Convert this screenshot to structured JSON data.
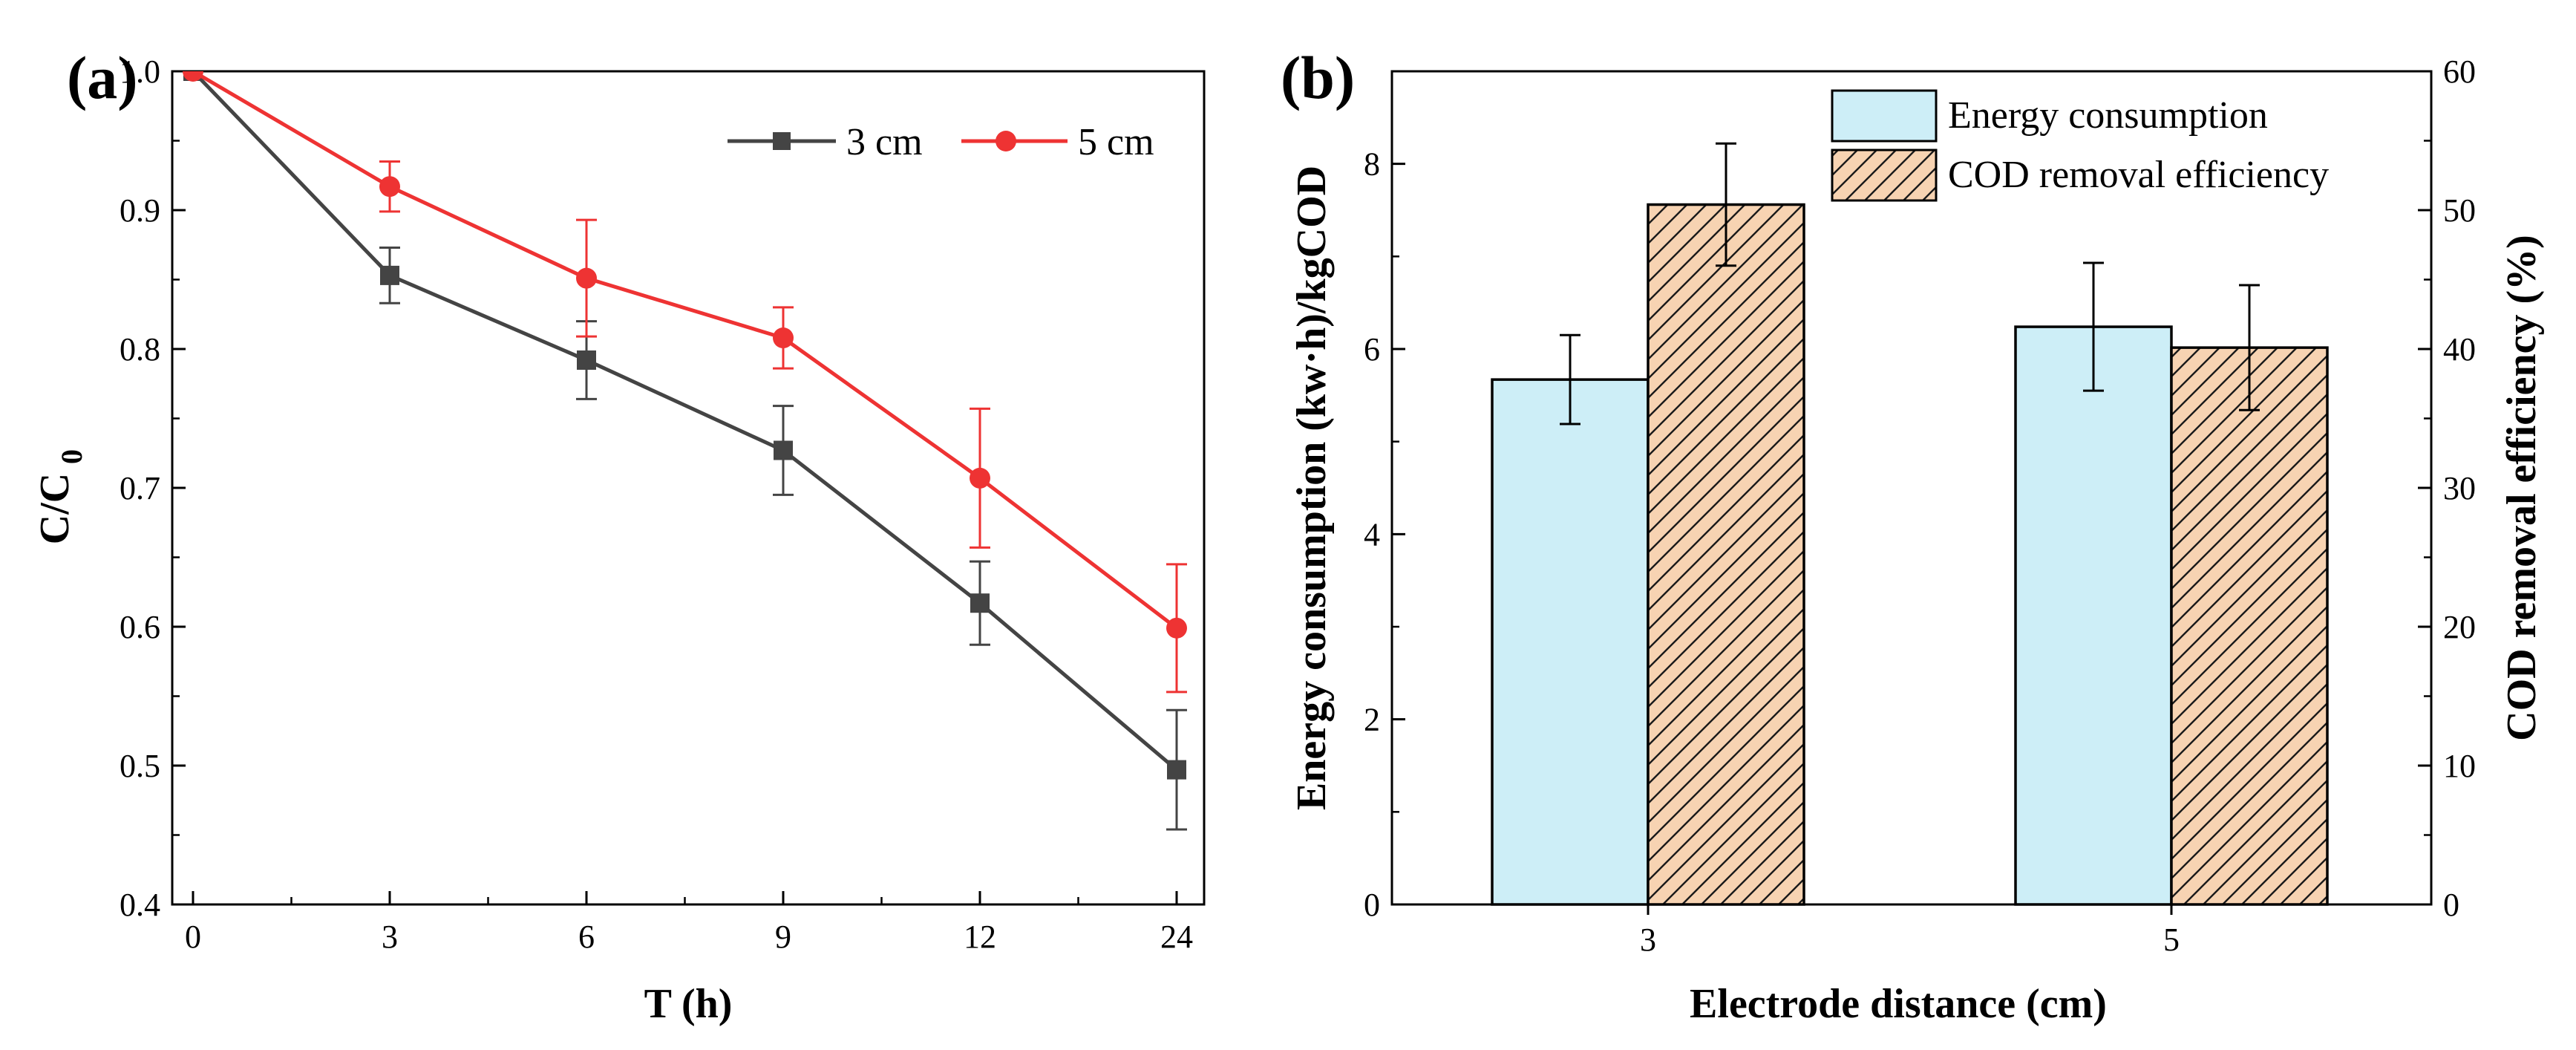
{
  "chart_data": [
    {
      "panel": "(a)",
      "type": "line",
      "categories": [
        "0",
        "3",
        "6",
        "9",
        "12",
        "24"
      ],
      "xlabel": "T (h)",
      "ylabel_main": "C/C",
      "ylabel_sub": "0",
      "ylim": [
        0.4,
        1.0
      ],
      "yticks": [
        "0.4",
        "0.5",
        "0.6",
        "0.7",
        "0.8",
        "0.9",
        "1.0"
      ],
      "series": [
        {
          "name": "3 cm",
          "color": "#444444",
          "marker": "square",
          "values": [
            1.0,
            0.853,
            0.792,
            0.727,
            0.617,
            0.497
          ],
          "errors": [
            0.0,
            0.02,
            0.028,
            0.032,
            0.03,
            0.043
          ]
        },
        {
          "name": "5 cm",
          "color": "#ee3333",
          "marker": "circle",
          "values": [
            1.0,
            0.917,
            0.851,
            0.808,
            0.707,
            0.599
          ],
          "errors": [
            0.0,
            0.018,
            0.042,
            0.022,
            0.05,
            0.046
          ]
        }
      ]
    },
    {
      "panel": "(b)",
      "type": "bar",
      "categories": [
        "3",
        "5"
      ],
      "xlabel": "Electrode distance (cm)",
      "ylabel_left": "Energy consumption (kw·h)/kgCOD",
      "ylabel_right": "COD removal efficiency (%)",
      "ylim_left": [
        0,
        9
      ],
      "ylim_right": [
        0,
        60
      ],
      "yticks_left": [
        "0",
        "2",
        "4",
        "6",
        "8"
      ],
      "yticks_right": [
        "0",
        "10",
        "20",
        "30",
        "40",
        "50",
        "60"
      ],
      "series": [
        {
          "name": "Energy consumption",
          "axis": "left",
          "color": "#cdeef7",
          "values": [
            5.67,
            6.24
          ],
          "errors": [
            0.48,
            0.69
          ]
        },
        {
          "name": "COD removal efficiency",
          "axis": "right",
          "color": "#f7d3b2",
          "hatch": "diagonal",
          "values": [
            50.4,
            40.1
          ],
          "errors": [
            4.4,
            4.5
          ]
        }
      ]
    }
  ]
}
